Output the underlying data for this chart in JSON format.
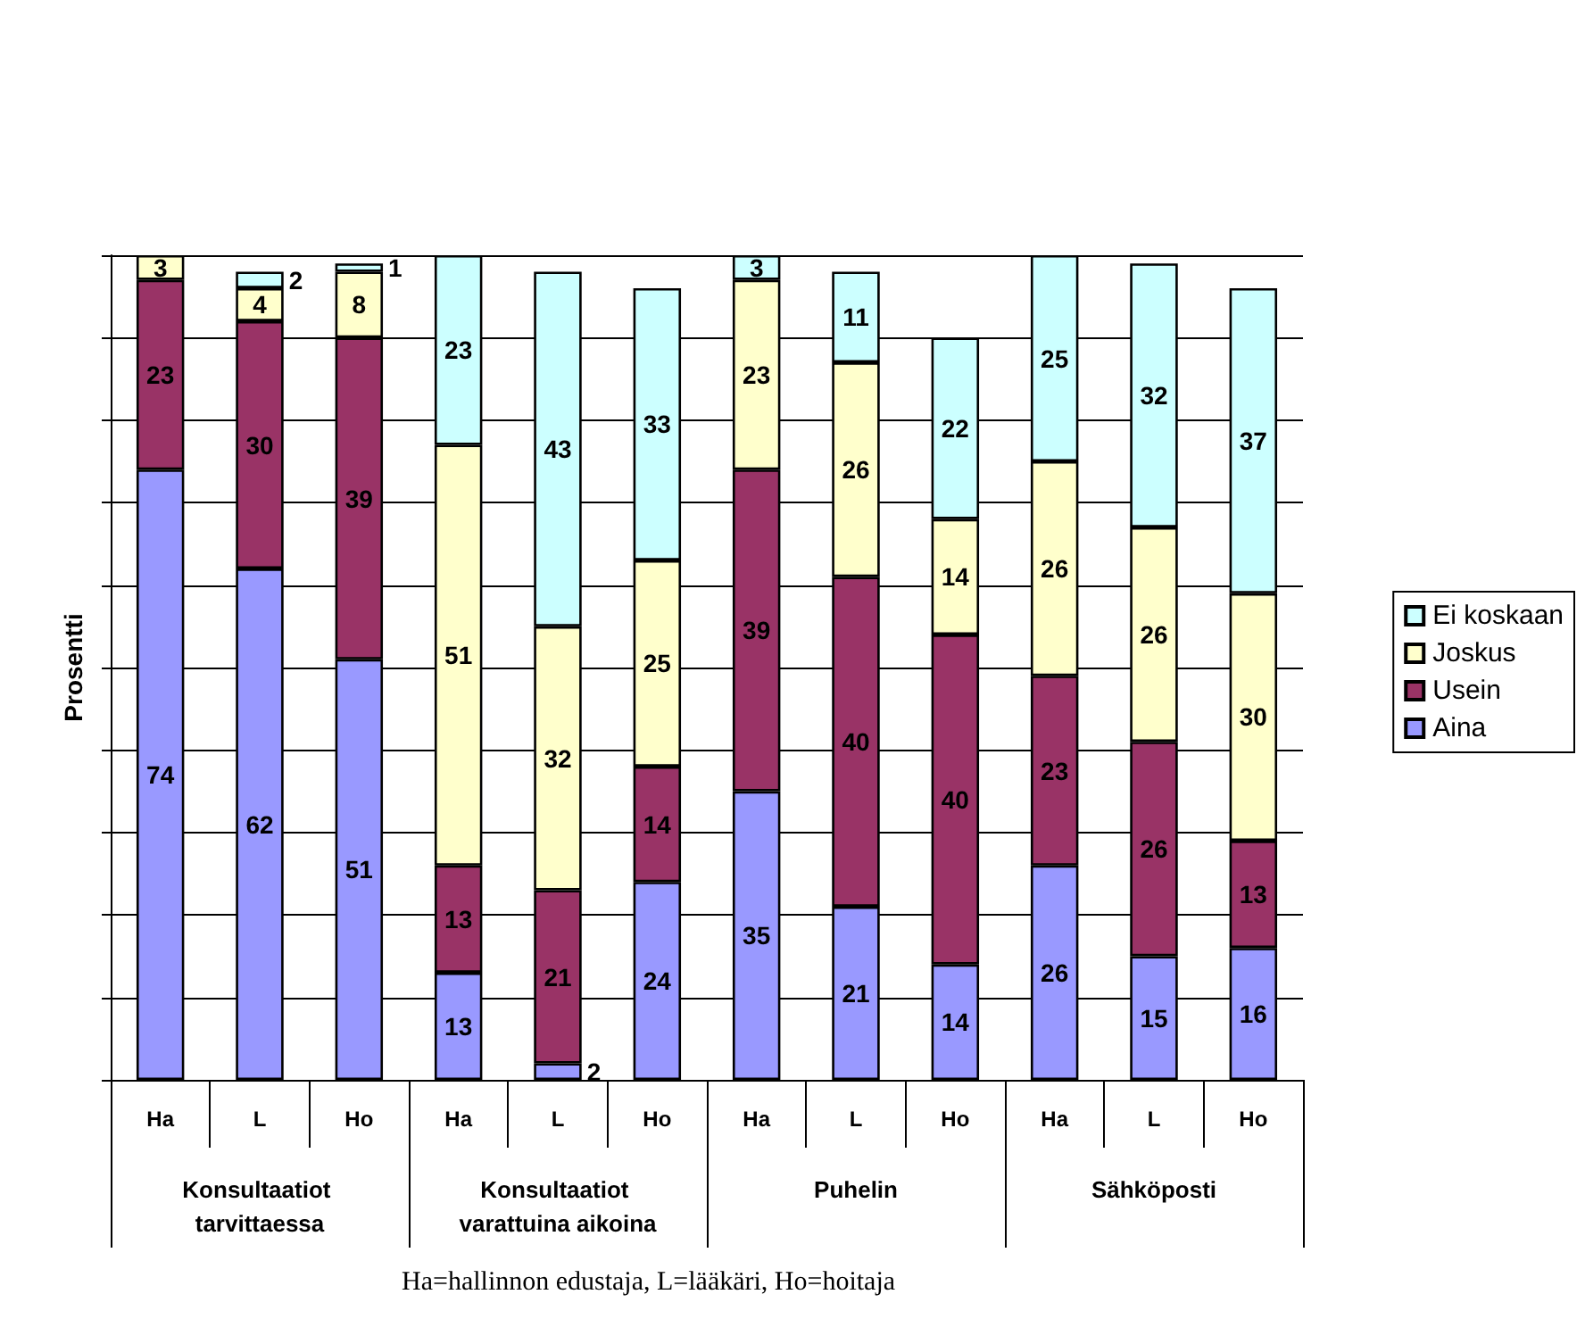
{
  "chart_data": {
    "type": "bar",
    "stacked": true,
    "ylabel": "Prosentti",
    "categories": [
      "Ha",
      "L",
      "Ho",
      "Ha",
      "L",
      "Ho",
      "Ha",
      "L",
      "Ho",
      "Ha",
      "L",
      "Ho"
    ],
    "series": [
      {
        "name": "Aina",
        "color": "#9999ff",
        "values": [
          74,
          62,
          51,
          13,
          2,
          24,
          35,
          21,
          14,
          26,
          15,
          16
        ]
      },
      {
        "name": "Usein",
        "color": "#993366",
        "values": [
          23,
          30,
          39,
          13,
          21,
          14,
          39,
          40,
          40,
          23,
          26,
          13
        ]
      },
      {
        "name": "Joskus",
        "color": "#ffffcc",
        "values": [
          3,
          4,
          8,
          51,
          32,
          25,
          23,
          26,
          14,
          26,
          26,
          30
        ]
      },
      {
        "name": "Ei koskaan",
        "color": "#ccffff",
        "values": [
          null,
          2,
          1,
          23,
          43,
          33,
          3,
          11,
          22,
          25,
          32,
          37
        ]
      }
    ],
    "ylim": [
      0,
      100
    ],
    "yticks": [
      {
        "value": 0,
        "label": null
      },
      {
        "value": 10,
        "label": null
      },
      {
        "value": 20,
        "label": null
      },
      {
        "value": 30,
        "label": null
      },
      {
        "value": 40,
        "label": null
      },
      {
        "value": 50,
        "label": null
      },
      {
        "value": 60,
        "label": null
      },
      {
        "value": 70,
        "label": null
      },
      {
        "value": 80,
        "label": null
      },
      {
        "value": 90,
        "label": null
      },
      {
        "value": 100,
        "label": null
      }
    ],
    "tick_labels": "x",
    "grid": "y",
    "data_labels": true,
    "legend": "right",
    "annotations": [
      "Konsultaatiot tarvittaessa",
      "Konsultaatiot varattuina aikoina",
      "Puhelin",
      "Sähköposti",
      "Ha=hallinnon edustaja, L=lääkäri, Ho=hoitaja"
    ]
  }
}
